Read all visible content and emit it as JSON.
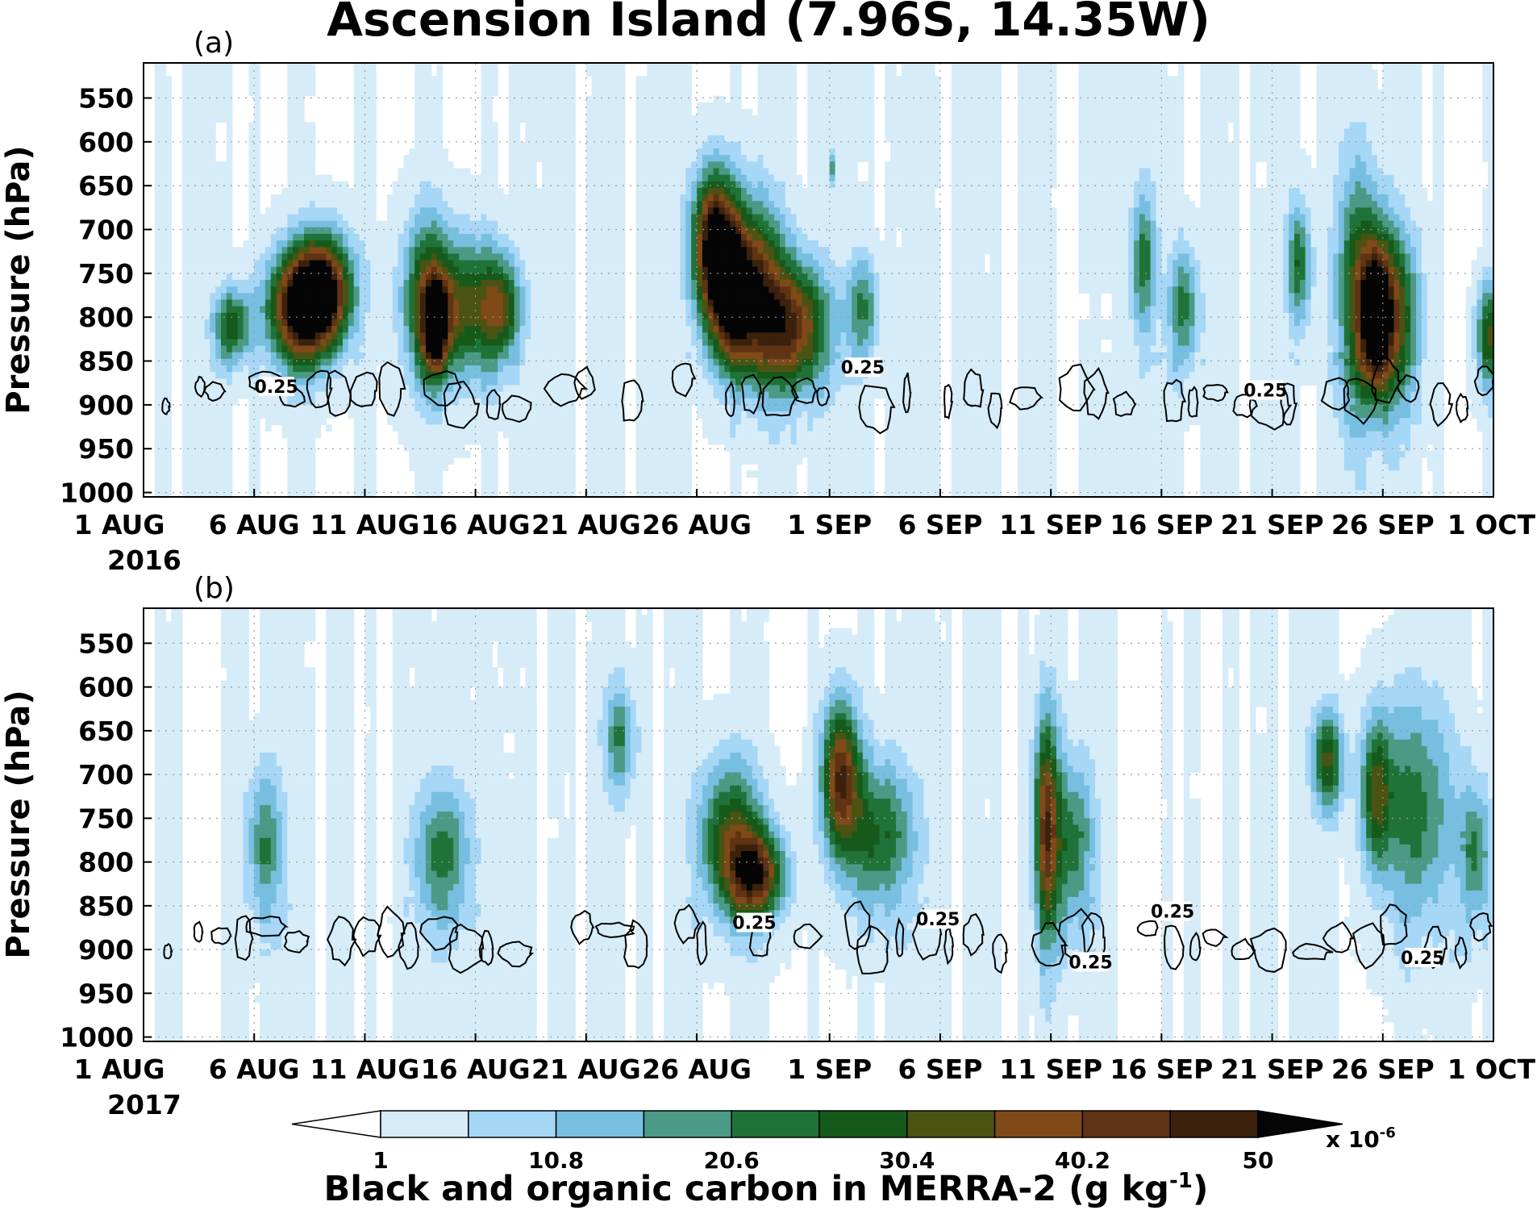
{
  "chart_data": {
    "type": "heatmap",
    "title": "Ascension Island (7.96S, 14.35W)",
    "panels": [
      {
        "label": "(a)",
        "year": "2016",
        "xlabel": "",
        "ylabel": "Pressure (hPa)",
        "ylim": [
          1005,
          510
        ],
        "xlim_days": [
          0,
          61
        ],
        "y_ticks": [
          550,
          600,
          650,
          700,
          750,
          800,
          850,
          900,
          950,
          1000
        ],
        "x_ticks": [
          {
            "day": 0,
            "label": "1 AUG"
          },
          {
            "day": 5,
            "label": "6 AUG"
          },
          {
            "day": 10,
            "label": "11 AUG"
          },
          {
            "day": 15,
            "label": "16 AUG"
          },
          {
            "day": 20,
            "label": "21 AUG"
          },
          {
            "day": 25,
            "label": "26 AUG"
          },
          {
            "day": 31,
            "label": "1 SEP"
          },
          {
            "day": 36,
            "label": "6 SEP"
          },
          {
            "day": 41,
            "label": "11 SEP"
          },
          {
            "day": 46,
            "label": "16 SEP"
          },
          {
            "day": 51,
            "label": "21 SEP"
          },
          {
            "day": 56,
            "label": "26 SEP"
          },
          {
            "day": 61,
            "label": "1 OCT"
          }
        ],
        "grid": true,
        "plumes": [
          {
            "day": 4.0,
            "p": 810,
            "peak": 28,
            "w": 0.6,
            "h": 30
          },
          {
            "day": 7.0,
            "p": 790,
            "peak": 50,
            "w": 1.0,
            "h": 45
          },
          {
            "day": 8.2,
            "p": 770,
            "peak": 46,
            "w": 0.9,
            "h": 45
          },
          {
            "day": 12.8,
            "p": 780,
            "peak": 30,
            "w": 0.8,
            "h": 65
          },
          {
            "day": 13.2,
            "p": 810,
            "peak": 42,
            "w": 0.4,
            "h": 35
          },
          {
            "day": 14.7,
            "p": 790,
            "peak": 30,
            "w": 1.1,
            "h": 55
          },
          {
            "day": 16.2,
            "p": 790,
            "peak": 25,
            "w": 0.6,
            "h": 40
          },
          {
            "day": 25.8,
            "p": 710,
            "peak": 50,
            "w": 0.7,
            "h": 55
          },
          {
            "day": 26.5,
            "p": 780,
            "peak": 44,
            "w": 0.8,
            "h": 55
          },
          {
            "day": 27.7,
            "p": 760,
            "peak": 30,
            "w": 0.9,
            "h": 70
          },
          {
            "day": 29.3,
            "p": 810,
            "peak": 42,
            "w": 1.2,
            "h": 50
          },
          {
            "day": 32.5,
            "p": 790,
            "peak": 20,
            "w": 0.5,
            "h": 40
          },
          {
            "day": 31.2,
            "p": 630,
            "peak": 55,
            "w": 0.05,
            "h": 14
          },
          {
            "day": 45.2,
            "p": 740,
            "peak": 22,
            "w": 0.4,
            "h": 60
          },
          {
            "day": 47.0,
            "p": 790,
            "peak": 22,
            "w": 0.5,
            "h": 50
          },
          {
            "day": 52.2,
            "p": 740,
            "peak": 24,
            "w": 0.4,
            "h": 50
          },
          {
            "day": 54.9,
            "p": 770,
            "peak": 28,
            "w": 0.7,
            "h": 100
          },
          {
            "day": 55.7,
            "p": 800,
            "peak": 42,
            "w": 0.5,
            "h": 55
          },
          {
            "day": 56.5,
            "p": 800,
            "peak": 32,
            "w": 0.8,
            "h": 70
          },
          {
            "day": 60.8,
            "p": 820,
            "peak": 30,
            "w": 0.4,
            "h": 40
          }
        ],
        "contour_0_25_labels": [
          {
            "day": 6.0,
            "p": 880,
            "text": "0.25"
          },
          {
            "day": 32.5,
            "p": 858,
            "text": "0.25"
          },
          {
            "day": 50.7,
            "p": 884,
            "text": "0.25"
          }
        ]
      },
      {
        "label": "(b)",
        "year": "2017",
        "xlabel": "",
        "ylabel": "Pressure (hPa)",
        "ylim": [
          1005,
          510
        ],
        "xlim_days": [
          0,
          61
        ],
        "y_ticks": [
          550,
          600,
          650,
          700,
          750,
          800,
          850,
          900,
          950,
          1000
        ],
        "x_ticks": [
          {
            "day": 0,
            "label": "1 AUG"
          },
          {
            "day": 5,
            "label": "6 AUG"
          },
          {
            "day": 10,
            "label": "11 AUG"
          },
          {
            "day": 15,
            "label": "16 AUG"
          },
          {
            "day": 20,
            "label": "21 AUG"
          },
          {
            "day": 25,
            "label": "26 AUG"
          },
          {
            "day": 31,
            "label": "1 SEP"
          },
          {
            "day": 36,
            "label": "6 SEP"
          },
          {
            "day": 41,
            "label": "11 SEP"
          },
          {
            "day": 46,
            "label": "16 SEP"
          },
          {
            "day": 51,
            "label": "21 SEP"
          },
          {
            "day": 56,
            "label": "26 SEP"
          },
          {
            "day": 61,
            "label": "1 OCT"
          }
        ],
        "grid": true,
        "plumes": [
          {
            "day": 5.5,
            "p": 780,
            "peak": 20,
            "w": 0.6,
            "h": 60
          },
          {
            "day": 13.5,
            "p": 790,
            "peak": 22,
            "w": 0.9,
            "h": 55
          },
          {
            "day": 21.5,
            "p": 660,
            "peak": 20,
            "w": 0.5,
            "h": 45
          },
          {
            "day": 26.5,
            "p": 770,
            "peak": 30,
            "w": 1.0,
            "h": 60
          },
          {
            "day": 27.7,
            "p": 815,
            "peak": 42,
            "w": 0.9,
            "h": 35
          },
          {
            "day": 31.5,
            "p": 700,
            "peak": 42,
            "w": 0.6,
            "h": 60
          },
          {
            "day": 33.2,
            "p": 770,
            "peak": 25,
            "w": 1.2,
            "h": 60
          },
          {
            "day": 40.8,
            "p": 760,
            "peak": 40,
            "w": 0.4,
            "h": 90
          },
          {
            "day": 42.0,
            "p": 780,
            "peak": 22,
            "w": 0.7,
            "h": 70
          },
          {
            "day": 53.5,
            "p": 685,
            "peak": 30,
            "w": 0.5,
            "h": 40
          },
          {
            "day": 55.7,
            "p": 720,
            "peak": 28,
            "w": 0.5,
            "h": 60
          },
          {
            "day": 57.5,
            "p": 740,
            "peak": 22,
            "w": 1.2,
            "h": 90
          },
          {
            "day": 60.2,
            "p": 790,
            "peak": 20,
            "w": 0.5,
            "h": 55
          }
        ],
        "contour_0_25_labels": [
          {
            "day": 27.6,
            "p": 870,
            "text": "0.25"
          },
          {
            "day": 35.9,
            "p": 866,
            "text": "0.25"
          },
          {
            "day": 42.8,
            "p": 915,
            "text": "0.25"
          },
          {
            "day": 46.5,
            "p": 857,
            "text": "0.25"
          },
          {
            "day": 57.8,
            "p": 910,
            "text": "0.25"
          }
        ]
      }
    ],
    "colorbar": {
      "levels": [
        1,
        5.9,
        10.8,
        15.7,
        20.6,
        25.5,
        30.4,
        35.3,
        40.2,
        45.1,
        50
      ],
      "tick_labels": [
        "1",
        "10.8",
        "20.6",
        "30.4",
        "40.2",
        "50"
      ],
      "scale_label": "x 10",
      "scale_exponent": "-6",
      "label": "Black and organic carbon in MERRA-2 (g kg",
      "label_exponent": "-1",
      "label_close": ")",
      "colors": [
        "#ffffff",
        "#d6ecf8",
        "#a7d7f6",
        "#77bfe0",
        "#4a9a86",
        "#1f7339",
        "#165a1b",
        "#4b5313",
        "#7f4a18",
        "#5f3313",
        "#3c210c",
        "#050505"
      ]
    }
  }
}
